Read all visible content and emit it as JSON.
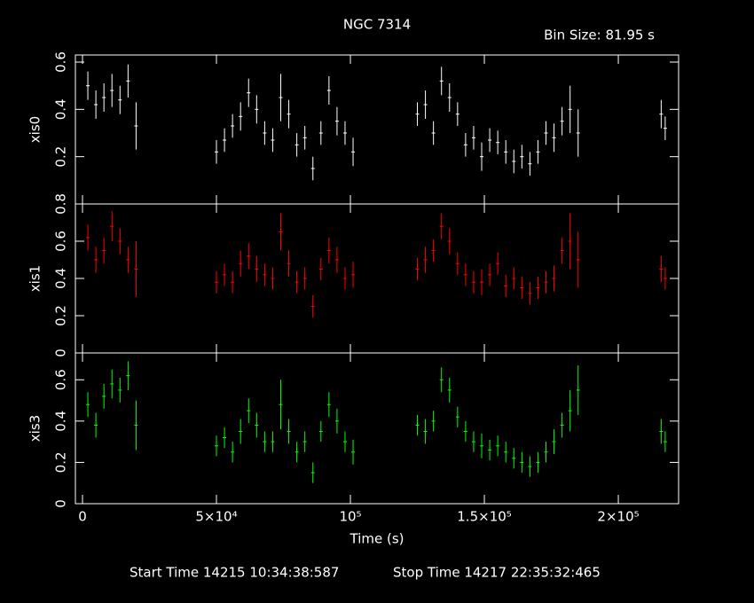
{
  "chart_data": [
    {
      "type": "errorbar",
      "title": "NGC 7314",
      "subtitle": "Bin Size: 81.95 s",
      "y_label": "xis0",
      "color": "#ffffff",
      "xlim": [
        -2650,
        222500
      ],
      "xticks": [
        0,
        50000,
        100000,
        150000,
        200000
      ],
      "ylim": [
        0.0,
        0.63
      ],
      "yticks": [
        0.2,
        0.4,
        0.6
      ],
      "x": [
        2000,
        5000,
        8000,
        11000,
        14000,
        17000,
        20000,
        50000,
        53000,
        56000,
        59000,
        62000,
        65000,
        68000,
        71000,
        74000,
        77000,
        80000,
        83000,
        86000,
        89000,
        92000,
        95000,
        98000,
        101000,
        125000,
        128000,
        131000,
        134000,
        137000,
        140000,
        143000,
        146000,
        149000,
        152000,
        155000,
        158000,
        161000,
        164000,
        167000,
        170000,
        173000,
        176000,
        179000,
        182000,
        185000,
        216000,
        217500
      ],
      "values": [
        0.5,
        0.42,
        0.45,
        0.48,
        0.44,
        0.52,
        0.33,
        0.22,
        0.27,
        0.33,
        0.37,
        0.47,
        0.4,
        0.3,
        0.27,
        0.45,
        0.38,
        0.25,
        0.28,
        0.15,
        0.3,
        0.48,
        0.35,
        0.3,
        0.22,
        0.38,
        0.42,
        0.3,
        0.52,
        0.45,
        0.38,
        0.25,
        0.28,
        0.2,
        0.27,
        0.26,
        0.22,
        0.18,
        0.2,
        0.17,
        0.22,
        0.3,
        0.28,
        0.35,
        0.4,
        0.3,
        0.38,
        0.32
      ],
      "errors": [
        0.06,
        0.06,
        0.06,
        0.07,
        0.06,
        0.07,
        0.1,
        0.05,
        0.05,
        0.05,
        0.06,
        0.06,
        0.06,
        0.05,
        0.05,
        0.1,
        0.06,
        0.05,
        0.05,
        0.05,
        0.05,
        0.06,
        0.06,
        0.05,
        0.06,
        0.05,
        0.06,
        0.05,
        0.06,
        0.06,
        0.05,
        0.05,
        0.05,
        0.06,
        0.05,
        0.05,
        0.05,
        0.05,
        0.05,
        0.05,
        0.05,
        0.05,
        0.06,
        0.06,
        0.1,
        0.1,
        0.06,
        0.05
      ]
    },
    {
      "type": "errorbar",
      "y_label": "xis1",
      "color": "#ff0000",
      "xlim": [
        -2650,
        222500
      ],
      "xticks": [
        0,
        50000,
        100000,
        150000,
        200000
      ],
      "ylim": [
        0,
        0.8
      ],
      "yticks": [
        0,
        0.2,
        0.4,
        0.6,
        0.8
      ],
      "x": [
        2000,
        5000,
        8000,
        11000,
        14000,
        17000,
        20000,
        50000,
        53000,
        56000,
        59000,
        62000,
        65000,
        68000,
        71000,
        74000,
        77000,
        80000,
        83000,
        86000,
        89000,
        92000,
        95000,
        98000,
        101000,
        125000,
        128000,
        131000,
        134000,
        137000,
        140000,
        143000,
        146000,
        149000,
        152000,
        155000,
        158000,
        161000,
        164000,
        167000,
        170000,
        173000,
        176000,
        179000,
        182000,
        185000,
        216000,
        217500
      ],
      "values": [
        0.62,
        0.5,
        0.55,
        0.68,
        0.6,
        0.5,
        0.45,
        0.38,
        0.42,
        0.38,
        0.48,
        0.52,
        0.45,
        0.42,
        0.4,
        0.65,
        0.48,
        0.38,
        0.4,
        0.25,
        0.45,
        0.55,
        0.5,
        0.4,
        0.42,
        0.45,
        0.5,
        0.55,
        0.68,
        0.6,
        0.48,
        0.42,
        0.38,
        0.38,
        0.42,
        0.48,
        0.36,
        0.4,
        0.35,
        0.32,
        0.35,
        0.38,
        0.4,
        0.55,
        0.6,
        0.5,
        0.45,
        0.4
      ],
      "errors": [
        0.07,
        0.07,
        0.07,
        0.08,
        0.07,
        0.07,
        0.15,
        0.06,
        0.06,
        0.06,
        0.07,
        0.07,
        0.07,
        0.06,
        0.06,
        0.1,
        0.07,
        0.06,
        0.06,
        0.06,
        0.06,
        0.07,
        0.07,
        0.06,
        0.07,
        0.06,
        0.07,
        0.06,
        0.07,
        0.07,
        0.06,
        0.06,
        0.06,
        0.07,
        0.06,
        0.06,
        0.06,
        0.06,
        0.06,
        0.06,
        0.06,
        0.06,
        0.07,
        0.07,
        0.15,
        0.15,
        0.07,
        0.06
      ]
    },
    {
      "type": "errorbar",
      "y_label": "xis3",
      "color": "#00ff00",
      "x_label": "Time (s)",
      "annotations": [
        "Start Time 14215 10:34:38:587",
        "Stop Time 14217 22:35:32:465"
      ],
      "xlim": [
        -2650,
        222500
      ],
      "xticks": [
        0,
        {
          "value": 50000,
          "label": "5×10⁴"
        },
        {
          "value": 100000,
          "label": "10⁵"
        },
        {
          "value": 150000,
          "label": "1.5×10⁵"
        },
        {
          "value": 200000,
          "label": "2×10⁵"
        }
      ],
      "ylim": [
        0,
        0.73
      ],
      "yticks": [
        0,
        0.2,
        0.4,
        0.6
      ],
      "x": [
        2000,
        5000,
        8000,
        11000,
        14000,
        17000,
        20000,
        50000,
        53000,
        56000,
        59000,
        62000,
        65000,
        68000,
        71000,
        74000,
        77000,
        80000,
        83000,
        86000,
        89000,
        92000,
        95000,
        98000,
        101000,
        125000,
        128000,
        131000,
        134000,
        137000,
        140000,
        143000,
        146000,
        149000,
        152000,
        155000,
        158000,
        161000,
        164000,
        167000,
        170000,
        173000,
        176000,
        179000,
        182000,
        185000,
        216000,
        217500
      ],
      "values": [
        0.48,
        0.38,
        0.52,
        0.58,
        0.55,
        0.62,
        0.38,
        0.28,
        0.32,
        0.25,
        0.35,
        0.45,
        0.38,
        0.3,
        0.3,
        0.48,
        0.35,
        0.25,
        0.3,
        0.15,
        0.35,
        0.48,
        0.4,
        0.3,
        0.25,
        0.38,
        0.35,
        0.4,
        0.6,
        0.55,
        0.42,
        0.35,
        0.3,
        0.28,
        0.26,
        0.28,
        0.25,
        0.22,
        0.2,
        0.18,
        0.2,
        0.25,
        0.3,
        0.38,
        0.45,
        0.55,
        0.35,
        0.3
      ],
      "errors": [
        0.06,
        0.06,
        0.06,
        0.07,
        0.06,
        0.07,
        0.12,
        0.05,
        0.05,
        0.05,
        0.06,
        0.06,
        0.06,
        0.05,
        0.05,
        0.12,
        0.06,
        0.05,
        0.05,
        0.05,
        0.05,
        0.06,
        0.06,
        0.05,
        0.06,
        0.05,
        0.06,
        0.05,
        0.06,
        0.06,
        0.05,
        0.05,
        0.05,
        0.06,
        0.05,
        0.05,
        0.05,
        0.05,
        0.05,
        0.05,
        0.05,
        0.05,
        0.06,
        0.06,
        0.1,
        0.12,
        0.06,
        0.05
      ]
    }
  ]
}
